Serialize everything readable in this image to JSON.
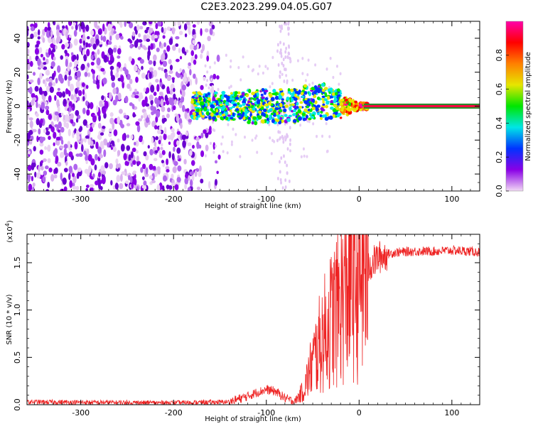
{
  "figure": {
    "title": "C2E3.2023.299.04.05.G07"
  },
  "chart_data": [
    {
      "type": "heatmap",
      "xlabel": "Height of straight line (km)",
      "ylabel": "Frequency (Hz)",
      "xlim": [
        -358,
        130
      ],
      "ylim": [
        -50,
        50
      ],
      "xticks": [
        -300,
        -200,
        -100,
        0,
        100
      ],
      "yticks": [
        -40,
        -20,
        0,
        20,
        40
      ],
      "colorbar": {
        "label": "Normalized spectral amplitude",
        "range": [
          0.0,
          1.0
        ],
        "ticks": [
          0.0,
          0.2,
          0.4,
          0.6,
          0.8
        ],
        "colors": [
          "#f2d9f5",
          "#8a00e6",
          "#0033ff",
          "#00e6e6",
          "#00e600",
          "#e6e600",
          "#ff8000",
          "#ff0000",
          "#ff00aa"
        ]
      },
      "features": {
        "noise_region_x": [
          -358,
          -160
        ],
        "signal_band_x": [
          -180,
          130
        ],
        "signal_center_freq": 0
      }
    },
    {
      "type": "line",
      "xlabel": "Height of straight line (km)",
      "ylabel": "SNR (10 * v/v)",
      "y_multiplier": "(x10^4)",
      "xlim": [
        -358,
        130
      ],
      "ylim": [
        0,
        18000
      ],
      "xticks": [
        -300,
        -200,
        -100,
        0,
        100
      ],
      "yticks": [
        0,
        5000,
        10000,
        15000
      ],
      "ytick_labels": [
        "0.0",
        "0.5",
        "1.0",
        "1.5"
      ],
      "color": "#ee2222",
      "series": [
        {
          "x": [
            -358,
            -300,
            -200,
            -140,
            -120,
            -110,
            -100,
            -90,
            -80,
            -70,
            -60,
            -50,
            -40,
            -30,
            -20,
            -10,
            0,
            10,
            20,
            30,
            40,
            60,
            80,
            100,
            120,
            130
          ],
          "values": [
            300,
            250,
            200,
            300,
            900,
            1300,
            1600,
            1400,
            700,
            300,
            1500,
            4500,
            7000,
            9000,
            11000,
            13000,
            13500,
            14500,
            15500,
            15900,
            16100,
            16200,
            16200,
            16300,
            16200,
            16100
          ]
        }
      ]
    }
  ]
}
